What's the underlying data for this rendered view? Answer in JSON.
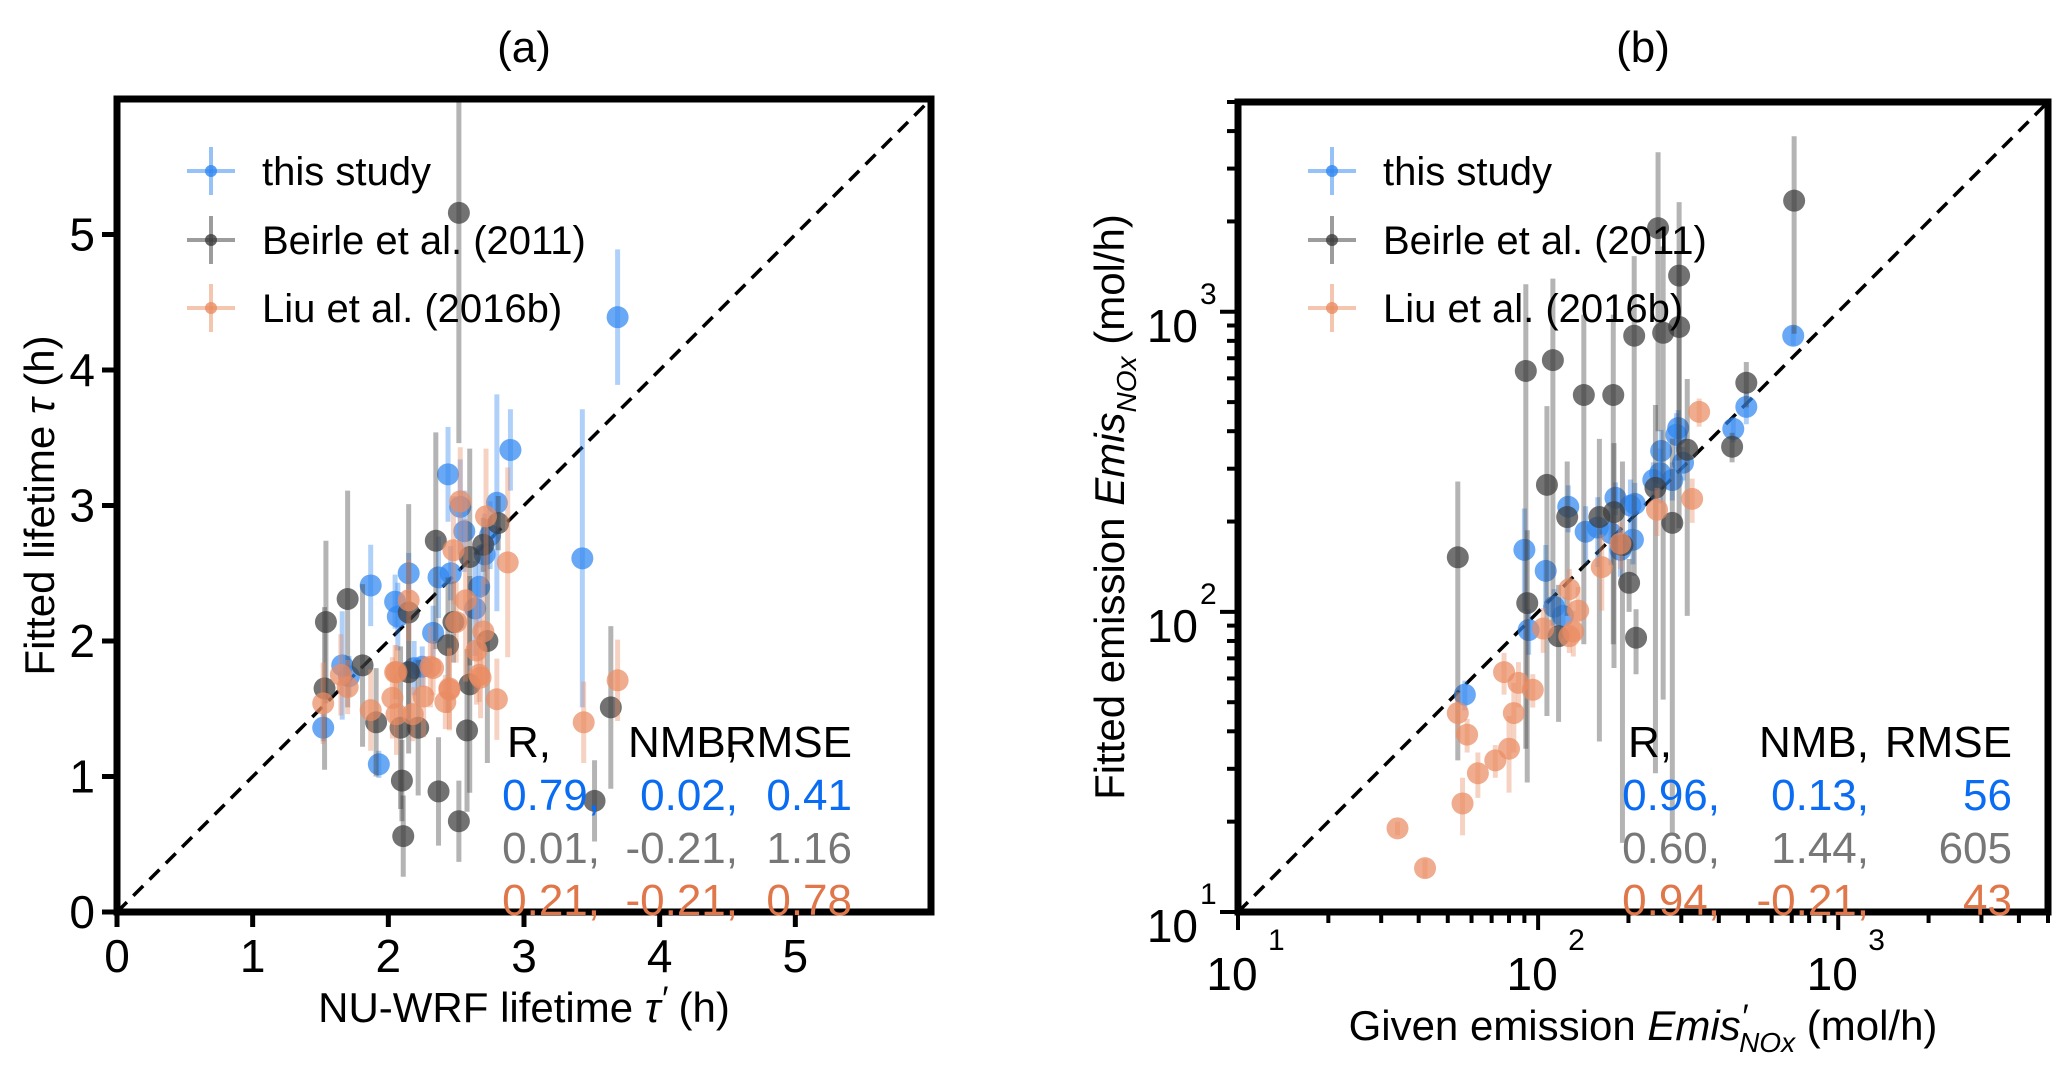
{
  "chart_data": [
    {
      "type": "scatter",
      "title": "(a)",
      "xlabel": {
        "pre": "NU-WRF lifetime ",
        "sym": "τ",
        "prime": "′",
        "sub": "",
        "post": " (h)"
      },
      "ylabel": {
        "pre": "Fitted lifetime ",
        "sym": "τ",
        "prime": "",
        "sub": "",
        "post": " (h)"
      },
      "scale": "linear",
      "xlim": [
        0,
        6
      ],
      "ylim": [
        0,
        6
      ],
      "xticks": [
        "0",
        "1",
        "2",
        "3",
        "4",
        "5"
      ],
      "yticks": [
        "0",
        "1",
        "2",
        "3",
        "4",
        "5"
      ],
      "reference_line": "1:1 dashed",
      "series": [
        {
          "name": "this study",
          "color": "#2f86f0",
          "points": [
            [
              3.69,
              4.39,
              0.5
            ],
            [
              2.9,
              3.41,
              0.3
            ],
            [
              2.44,
              3.23,
              0.35
            ],
            [
              2.53,
              2.99,
              0.35
            ],
            [
              2.8,
              3.02,
              0.8
            ],
            [
              2.56,
              2.81,
              0.3
            ],
            [
              2.75,
              2.78,
              0.25
            ],
            [
              2.71,
              2.64,
              0.3
            ],
            [
              3.43,
              2.61,
              1.1
            ],
            [
              2.15,
              2.5,
              0.15
            ],
            [
              1.87,
              2.41,
              0.3
            ],
            [
              2.37,
              2.47,
              0.3
            ],
            [
              2.46,
              2.5,
              0.2
            ],
            [
              2.67,
              2.4,
              0.3
            ],
            [
              2.05,
              2.29,
              0.2
            ],
            [
              2.07,
              2.18,
              0.25
            ],
            [
              2.64,
              2.24,
              0.35
            ],
            [
              2.33,
              2.06,
              0.2
            ],
            [
              1.66,
              1.82,
              0.4
            ],
            [
              1.71,
              1.74,
              0.15
            ],
            [
              2.19,
              1.8,
              0.2
            ],
            [
              2.25,
              1.81,
              0.15
            ],
            [
              1.52,
              1.36,
              0.1
            ],
            [
              1.93,
              1.09,
              0.1
            ]
          ]
        },
        {
          "name": "Beirle et al. (2011)",
          "color": "#3c3c3c",
          "points": [
            [
              2.52,
              5.16,
              1.7
            ],
            [
              2.35,
              2.74,
              0.8
            ],
            [
              2.81,
              2.87,
              0.2
            ],
            [
              2.7,
              2.71,
              0.2
            ],
            [
              2.6,
              2.62,
              0.8
            ],
            [
              1.7,
              2.31,
              0.8
            ],
            [
              1.54,
              2.14,
              0.6
            ],
            [
              2.15,
              2.21,
              0.8
            ],
            [
              2.48,
              2.14,
              0.3
            ],
            [
              2.44,
              1.97,
              0.5
            ],
            [
              2.73,
              2.0,
              0.9
            ],
            [
              1.81,
              1.82,
              0.6
            ],
            [
              2.15,
              1.77,
              0.6
            ],
            [
              1.53,
              1.65,
              0.6
            ],
            [
              2.6,
              1.68,
              0.8
            ],
            [
              1.91,
              1.4,
              0.4
            ],
            [
              2.09,
              1.36,
              0.6
            ],
            [
              2.22,
              1.36,
              0.5
            ],
            [
              2.58,
              1.34,
              0.6
            ],
            [
              2.1,
              0.97,
              0.3
            ],
            [
              2.37,
              0.89,
              0.4
            ],
            [
              2.52,
              0.67,
              0.3
            ],
            [
              2.11,
              0.56,
              0.3
            ],
            [
              3.64,
              1.51,
              0.6
            ],
            [
              3.52,
              0.82,
              0.3
            ]
          ]
        },
        {
          "name": "Liu et al. (2016b)",
          "color": "#ea8c62",
          "points": [
            [
              2.53,
              3.03,
              0.4
            ],
            [
              2.72,
              2.92,
              0.5
            ],
            [
              2.48,
              2.67,
              0.4
            ],
            [
              2.88,
              2.58,
              0.7
            ],
            [
              2.57,
              2.3,
              0.6
            ],
            [
              2.15,
              2.3,
              0.3
            ],
            [
              2.5,
              2.14,
              0.3
            ],
            [
              2.7,
              2.07,
              0.4
            ],
            [
              2.65,
              1.93,
              0.4
            ],
            [
              2.68,
              1.73,
              0.3
            ],
            [
              2.31,
              1.81,
              0.3
            ],
            [
              2.06,
              1.77,
              0.2
            ],
            [
              2.45,
              1.65,
              0.3
            ],
            [
              1.52,
              1.54,
              0.3
            ],
            [
              1.65,
              1.75,
              0.3
            ],
            [
              1.7,
              1.66,
              0.2
            ],
            [
              1.87,
              1.49,
              0.3
            ],
            [
              2.05,
              1.77,
              0.2
            ],
            [
              2.03,
              1.58,
              0.3
            ],
            [
              2.06,
              1.46,
              0.3
            ],
            [
              2.18,
              1.46,
              0.2
            ],
            [
              2.26,
              1.59,
              0.3
            ],
            [
              2.33,
              1.8,
              0.2
            ],
            [
              2.42,
              1.55,
              0.2
            ],
            [
              2.45,
              1.64,
              0.3
            ],
            [
              2.67,
              1.75,
              0.2
            ],
            [
              2.8,
              1.57,
              0.3
            ],
            [
              3.69,
              1.71,
              0.3
            ],
            [
              3.44,
              1.4,
              0.3
            ]
          ]
        }
      ],
      "stats": {
        "header": [
          "R,",
          "NMB,",
          "RMSE"
        ],
        "rows": [
          {
            "color": "#0a6cf2",
            "values": [
              "0.79,",
              "0.02,",
              "0.41"
            ]
          },
          {
            "color": "#777777",
            "values": [
              "0.01,",
              "-0.21,",
              "1.16"
            ]
          },
          {
            "color": "#e0774a",
            "values": [
              "0.21,",
              "-0.21,",
              "0.78"
            ]
          }
        ]
      }
    },
    {
      "type": "scatter",
      "title": "(b)",
      "xlabel": {
        "pre": "Given emission ",
        "sym": "Emis",
        "prime": "′",
        "sub": "NOx",
        "post": " (mol/h)"
      },
      "ylabel": {
        "pre": "Fitted emission ",
        "sym": "Emis",
        "prime": "",
        "sub": "NOx",
        "post": " (mol/h)"
      },
      "scale": "log",
      "xlim": [
        10,
        5000
      ],
      "ylim": [
        10,
        5000
      ],
      "xticks": [
        {
          "base": "10",
          "exp": "1"
        },
        {
          "base": "10",
          "exp": "2"
        },
        {
          "base": "10",
          "exp": "3"
        }
      ],
      "yticks": [
        {
          "base": "10",
          "exp": "1"
        },
        {
          "base": "10",
          "exp": "2"
        },
        {
          "base": "10",
          "exp": "3"
        }
      ],
      "reference_line": "1:1 dashed",
      "series": [
        {
          "name": "this study",
          "color": "#2f86f0",
          "points": [
            [
              708,
              832,
              60
            ],
            [
              494,
              482,
              60
            ],
            [
              447,
              407,
              40
            ],
            [
              293,
              410,
              60
            ],
            [
              289,
              389,
              70
            ],
            [
              257,
              344,
              60
            ],
            [
              304,
              314,
              40
            ],
            [
              255,
              290,
              60
            ],
            [
              242,
              275,
              40
            ],
            [
              280,
              275,
              40
            ],
            [
              181,
              240,
              30
            ],
            [
              126,
              224,
              40
            ],
            [
              210,
              229,
              40
            ],
            [
              203,
              226,
              50
            ],
            [
              144,
              185,
              40
            ],
            [
              158,
              191,
              50
            ],
            [
              175,
              183,
              40
            ],
            [
              207,
              174,
              30
            ],
            [
              188,
              161,
              30
            ],
            [
              90,
              161,
              60
            ],
            [
              106,
              137,
              30
            ],
            [
              113,
              104,
              15
            ],
            [
              121,
              97,
              15
            ],
            [
              93,
              87,
              15
            ],
            [
              57,
              53,
              6
            ]
          ]
        },
        {
          "name": "Beirle et al. (2011)",
          "color": "#3c3c3c",
          "points": [
            [
              713,
              2345,
              1500
            ],
            [
              251,
              1900,
              1500
            ],
            [
              295,
              1320,
              1000
            ],
            [
              295,
              890,
              700
            ],
            [
              261,
              851,
              800
            ],
            [
              209,
              832,
              700
            ],
            [
              91,
              635,
              600
            ],
            [
              112,
              690,
              600
            ],
            [
              142,
              528,
              450
            ],
            [
              178,
              528,
              450
            ],
            [
              494,
              580,
              100
            ],
            [
              443,
              355,
              40
            ],
            [
              314,
              347,
              250
            ],
            [
              107,
              265,
              220
            ],
            [
              246,
              259,
              230
            ],
            [
              160,
              207,
              170
            ],
            [
              179,
              215,
              150
            ],
            [
              125,
              207,
              110
            ],
            [
              280,
              198,
              180
            ],
            [
              54,
              152,
              120
            ],
            [
              191,
              167,
              150
            ],
            [
              92,
              107,
              80
            ],
            [
              201,
              125,
              25
            ],
            [
              212,
              82,
              20
            ],
            [
              117,
              83,
              40
            ]
          ]
        },
        {
          "name": "Liu et al. (2016b)",
          "color": "#ea8c62",
          "points": [
            [
              344,
              464,
              50
            ],
            [
              326,
              238,
              40
            ],
            [
              249,
              219,
              40
            ],
            [
              188,
              169,
              30
            ],
            [
              163,
              141,
              40
            ],
            [
              127,
              119,
              20
            ],
            [
              136,
              101,
              20
            ],
            [
              104,
              88,
              15
            ],
            [
              131,
              86,
              15
            ],
            [
              127,
              83,
              10
            ],
            [
              77,
              63,
              10
            ],
            [
              86,
              58,
              10
            ],
            [
              96,
              55,
              7
            ],
            [
              54,
              46,
              8
            ],
            [
              83,
              46,
              12
            ],
            [
              58,
              39,
              5
            ],
            [
              80,
              35,
              10
            ],
            [
              72,
              32,
              4
            ],
            [
              63,
              29,
              5
            ],
            [
              56,
              23,
              5
            ],
            [
              34,
              19,
              1
            ],
            [
              42,
              14,
              1
            ]
          ]
        }
      ],
      "stats": {
        "header": [
          "R,",
          "NMB,",
          "RMSE"
        ],
        "rows": [
          {
            "color": "#0a6cf2",
            "values": [
              "0.96,",
              "0.13,",
              "56"
            ]
          },
          {
            "color": "#777777",
            "values": [
              "0.60,",
              "1.44,",
              "605"
            ]
          },
          {
            "color": "#e0774a",
            "values": [
              "0.94,",
              "-0.21,",
              "43"
            ]
          }
        ]
      }
    }
  ]
}
